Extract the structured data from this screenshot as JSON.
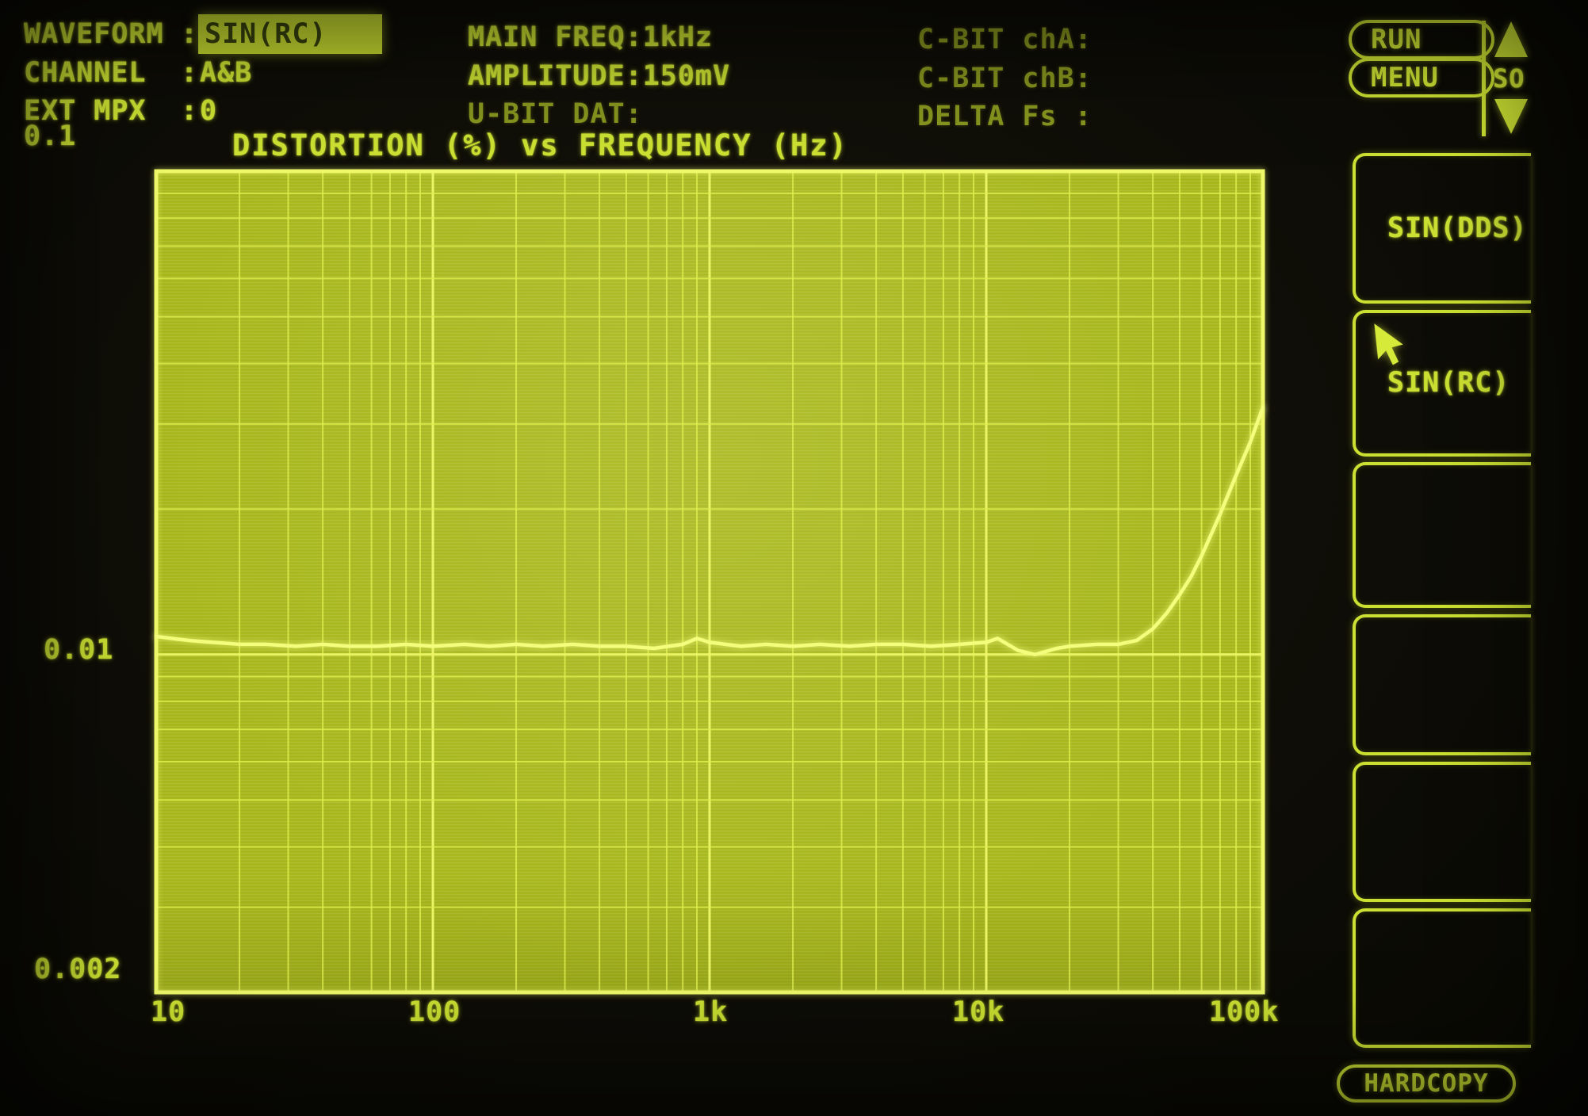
{
  "status_left": {
    "rows": [
      {
        "label": "WAVEFORM",
        "sep": ":",
        "value": "SIN(RC)",
        "highlighted": true
      },
      {
        "label": "CHANNEL",
        "sep": ":",
        "value": "A&B",
        "highlighted": false
      },
      {
        "label": "EXT MPX",
        "sep": ":",
        "value": "0",
        "highlighted": false
      }
    ]
  },
  "status_mid": {
    "rows": [
      {
        "text": "MAIN FREQ:1kHz",
        "dim": false
      },
      {
        "text": "AMPLITUDE:150mV",
        "dim": false
      },
      {
        "text": "U-BIT DAT:",
        "dim": true
      }
    ]
  },
  "status_right": {
    "rows": [
      {
        "text": "C-BIT chA:"
      },
      {
        "text": "C-BIT chB:"
      },
      {
        "text": "DELTA Fs :"
      }
    ]
  },
  "buttons": {
    "run": "RUN",
    "menu": "MENU",
    "hardcopy": "HARDCOPY",
    "scroll_label": "SO"
  },
  "sidebar": {
    "items": [
      {
        "label": "SIN(DDS)"
      },
      {
        "label": "SIN(RC)"
      },
      {
        "label": ""
      },
      {
        "label": ""
      },
      {
        "label": ""
      },
      {
        "label": ""
      }
    ],
    "cursor_on_item": 1
  },
  "colors": {
    "phosphor_bright": "#cbe032",
    "phosphor_dim": "#87961f",
    "plot_fill": "#a9b91d",
    "grid_line": "#dfee4e",
    "grid_major": "#eef868",
    "trace": "#f4fd7c",
    "highlight_bg": "#c8dc30",
    "highlight_text": "#39430f",
    "background": "#0e0d07"
  },
  "chart_data": {
    "type": "line",
    "title": "DISTORTION (%) vs FREQUENCY (Hz)",
    "xlabel": "FREQUENCY (Hz)",
    "ylabel": "DISTORTION (%)",
    "x_scale": "log",
    "y_scale": "log",
    "xlim": [
      10,
      100000
    ],
    "ylim": [
      0.002,
      0.1
    ],
    "grid": "log decades, minor lines 2-9",
    "legend_position": "none",
    "x_ticks": [
      {
        "v": 10,
        "label": "10"
      },
      {
        "v": 100,
        "label": "100"
      },
      {
        "v": 1000,
        "label": "1k"
      },
      {
        "v": 10000,
        "label": "10k"
      },
      {
        "v": 100000,
        "label": "100k"
      }
    ],
    "y_ticks": [
      {
        "v": 0.1,
        "label": "0.1"
      },
      {
        "v": 0.01,
        "label": "0.01"
      },
      {
        "v": 0.002,
        "label": "0.002"
      }
    ],
    "series": [
      {
        "name": "distortion",
        "points": [
          [
            10,
            0.0109
          ],
          [
            13,
            0.0107
          ],
          [
            16,
            0.0106
          ],
          [
            20,
            0.0105
          ],
          [
            25,
            0.0105
          ],
          [
            32,
            0.0104
          ],
          [
            40,
            0.0105
          ],
          [
            50,
            0.0104
          ],
          [
            63,
            0.0104
          ],
          [
            80,
            0.0105
          ],
          [
            100,
            0.0104
          ],
          [
            130,
            0.0105
          ],
          [
            160,
            0.0104
          ],
          [
            200,
            0.0105
          ],
          [
            250,
            0.0104
          ],
          [
            320,
            0.0105
          ],
          [
            400,
            0.0104
          ],
          [
            500,
            0.0104
          ],
          [
            630,
            0.0103
          ],
          [
            800,
            0.0105
          ],
          [
            900,
            0.0108
          ],
          [
            1000,
            0.0106
          ],
          [
            1300,
            0.0104
          ],
          [
            1600,
            0.0105
          ],
          [
            2000,
            0.0104
          ],
          [
            2500,
            0.0105
          ],
          [
            3200,
            0.0104
          ],
          [
            4000,
            0.0105
          ],
          [
            5000,
            0.0105
          ],
          [
            6300,
            0.0104
          ],
          [
            8000,
            0.0105
          ],
          [
            10000,
            0.0106
          ],
          [
            11000,
            0.0108
          ],
          [
            13000,
            0.0102
          ],
          [
            15000,
            0.01
          ],
          [
            18000,
            0.0103
          ],
          [
            20000,
            0.0104
          ],
          [
            25000,
            0.0105
          ],
          [
            30000,
            0.0105
          ],
          [
            35000,
            0.0107
          ],
          [
            40000,
            0.0113
          ],
          [
            45000,
            0.0122
          ],
          [
            50000,
            0.0133
          ],
          [
            55000,
            0.0145
          ],
          [
            60000,
            0.016
          ],
          [
            70000,
            0.0195
          ],
          [
            80000,
            0.0235
          ],
          [
            90000,
            0.0275
          ],
          [
            100000,
            0.0325
          ]
        ]
      }
    ]
  }
}
